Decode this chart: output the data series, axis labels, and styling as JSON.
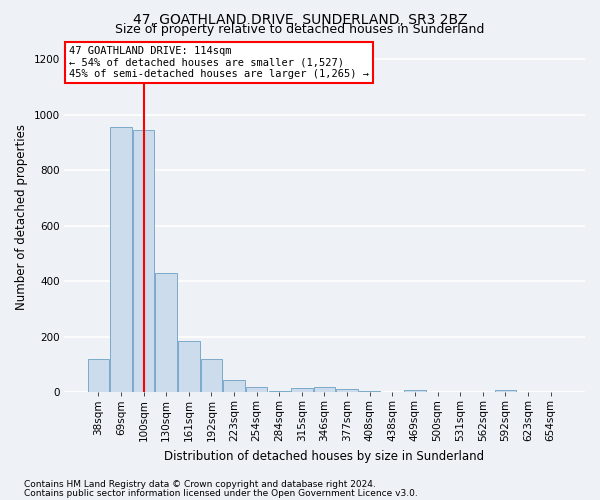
{
  "title": "47, GOATHLAND DRIVE, SUNDERLAND, SR3 2BZ",
  "subtitle": "Size of property relative to detached houses in Sunderland",
  "xlabel": "Distribution of detached houses by size in Sunderland",
  "ylabel": "Number of detached properties",
  "bar_color": "#ccdcec",
  "bar_edge_color": "#7aaac8",
  "bar_categories": [
    "38sqm",
    "69sqm",
    "100sqm",
    "130sqm",
    "161sqm",
    "192sqm",
    "223sqm",
    "254sqm",
    "284sqm",
    "315sqm",
    "346sqm",
    "377sqm",
    "408sqm",
    "438sqm",
    "469sqm",
    "500sqm",
    "531sqm",
    "562sqm",
    "592sqm",
    "623sqm",
    "654sqm"
  ],
  "bar_values": [
    120,
    955,
    945,
    430,
    185,
    120,
    42,
    20,
    5,
    15,
    18,
    10,
    5,
    2,
    8,
    1,
    1,
    1,
    8,
    1,
    1
  ],
  "ylim": [
    0,
    1260
  ],
  "yticks": [
    0,
    200,
    400,
    600,
    800,
    1000,
    1200
  ],
  "property_line_x": 2.0,
  "property_label": "47 GOATHLAND DRIVE: 114sqm",
  "annotation_line1": "← 54% of detached houses are smaller (1,527)",
  "annotation_line2": "45% of semi-detached houses are larger (1,265) →",
  "footnote1": "Contains HM Land Registry data © Crown copyright and database right 2024.",
  "footnote2": "Contains public sector information licensed under the Open Government Licence v3.0.",
  "background_color": "#eef2f7",
  "grid_color": "#ffffff",
  "title_fontsize": 10,
  "subtitle_fontsize": 9,
  "axis_label_fontsize": 8.5,
  "tick_fontsize": 7.5,
  "annotation_fontsize": 7.5,
  "footnote_fontsize": 6.5
}
